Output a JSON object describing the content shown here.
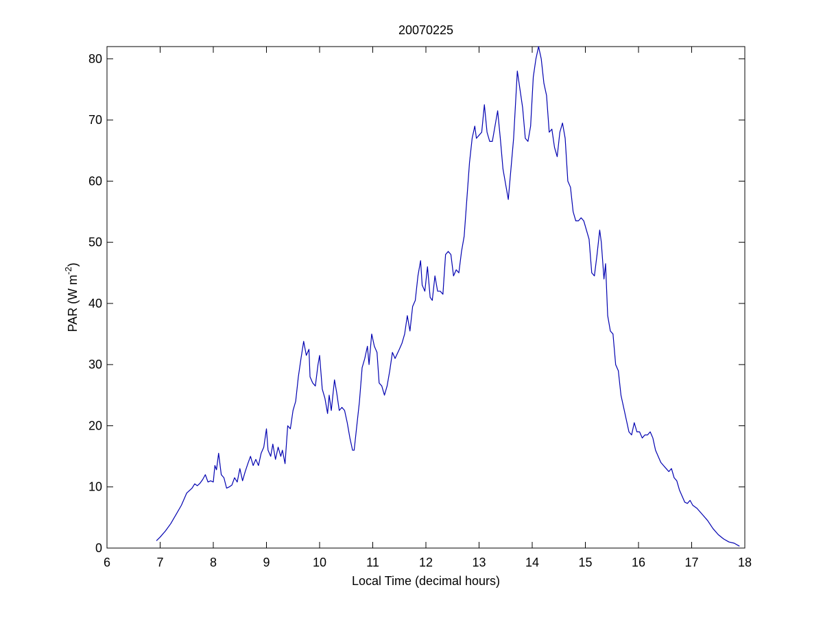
{
  "chart_data": {
    "type": "line",
    "title": "20070225",
    "xlabel": "Local Time (decimal hours)",
    "ylabel": {
      "text": "PAR (W m",
      "superscript": "-2",
      "suffix": ")"
    },
    "xlim": [
      6,
      18
    ],
    "ylim": [
      0,
      82
    ],
    "xticks": [
      6,
      7,
      8,
      9,
      10,
      11,
      12,
      13,
      14,
      15,
      16,
      17,
      18
    ],
    "yticks": [
      0,
      10,
      20,
      30,
      40,
      50,
      60,
      70,
      80
    ],
    "grid": false,
    "x": [
      6.93,
      7.0,
      7.1,
      7.2,
      7.3,
      7.4,
      7.5,
      7.6,
      7.65,
      7.7,
      7.75,
      7.8,
      7.85,
      7.9,
      7.95,
      8.0,
      8.03,
      8.06,
      8.1,
      8.15,
      8.2,
      8.25,
      8.3,
      8.35,
      8.4,
      8.45,
      8.5,
      8.55,
      8.6,
      8.65,
      8.7,
      8.75,
      8.8,
      8.85,
      8.9,
      8.95,
      9.0,
      9.03,
      9.08,
      9.12,
      9.17,
      9.22,
      9.27,
      9.3,
      9.35,
      9.4,
      9.45,
      9.5,
      9.55,
      9.6,
      9.65,
      9.7,
      9.75,
      9.8,
      9.82,
      9.87,
      9.92,
      9.97,
      10.0,
      10.05,
      10.1,
      10.15,
      10.18,
      10.22,
      10.28,
      10.32,
      10.37,
      10.42,
      10.47,
      10.52,
      10.57,
      10.62,
      10.65,
      10.7,
      10.75,
      10.8,
      10.85,
      10.9,
      10.93,
      10.98,
      11.03,
      11.08,
      11.12,
      11.17,
      11.22,
      11.27,
      11.32,
      11.37,
      11.42,
      11.5,
      11.55,
      11.6,
      11.65,
      11.7,
      11.75,
      11.8,
      11.85,
      11.9,
      11.93,
      11.98,
      12.03,
      12.08,
      12.12,
      12.17,
      12.22,
      12.27,
      12.32,
      12.37,
      12.42,
      12.47,
      12.52,
      12.57,
      12.62,
      12.67,
      12.72,
      12.77,
      12.82,
      12.87,
      12.92,
      12.95,
      13.0,
      13.05,
      13.1,
      13.15,
      13.2,
      13.25,
      13.3,
      13.35,
      13.4,
      13.45,
      13.5,
      13.55,
      13.6,
      13.65,
      13.72,
      13.77,
      13.82,
      13.87,
      13.92,
      13.97,
      14.02,
      14.07,
      14.12,
      14.17,
      14.22,
      14.27,
      14.32,
      14.37,
      14.42,
      14.47,
      14.52,
      14.57,
      14.62,
      14.67,
      14.72,
      14.77,
      14.82,
      14.87,
      14.92,
      14.97,
      15.02,
      15.07,
      15.12,
      15.17,
      15.22,
      15.27,
      15.3,
      15.35,
      15.38,
      15.42,
      15.47,
      15.52,
      15.57,
      15.62,
      15.67,
      15.72,
      15.77,
      15.82,
      15.87,
      15.92,
      15.97,
      16.02,
      16.07,
      16.12,
      16.17,
      16.22,
      16.27,
      16.32,
      16.37,
      16.42,
      16.47,
      16.52,
      16.57,
      16.62,
      16.67,
      16.72,
      16.77,
      16.82,
      16.87,
      16.92,
      16.97,
      17.02,
      17.1,
      17.2,
      17.3,
      17.4,
      17.5,
      17.6,
      17.7,
      17.8,
      17.9
    ],
    "series": [
      {
        "color": "#0000b0",
        "values": [
          1.2,
          1.8,
          2.8,
          4,
          5.5,
          7,
          9,
          9.8,
          10.5,
          10.2,
          10.6,
          11.2,
          12,
          10.8,
          11,
          10.8,
          13.5,
          12.8,
          15.5,
          12,
          11.5,
          9.8,
          10,
          10.3,
          11.5,
          10.8,
          13,
          11,
          12.5,
          13.8,
          15,
          13.5,
          14.5,
          13.5,
          15.5,
          16.5,
          19.5,
          16,
          15,
          17,
          14.5,
          16.5,
          15,
          16,
          13.8,
          20,
          19.5,
          22.5,
          24,
          28,
          31,
          33.8,
          31.5,
          32.5,
          28,
          27,
          26.5,
          30,
          31.5,
          26,
          24.5,
          22,
          25,
          22.5,
          27.5,
          25.5,
          22.5,
          23,
          22.5,
          20.5,
          18,
          16,
          16,
          20,
          24,
          29.5,
          31,
          33,
          30,
          35,
          33,
          32,
          27,
          26.5,
          25,
          26.5,
          29,
          32,
          31,
          32.5,
          33.5,
          35,
          38,
          35.5,
          39.5,
          40.5,
          44.5,
          47,
          43,
          42,
          46,
          41,
          40.5,
          44.5,
          42,
          42,
          41.5,
          48,
          48.5,
          48,
          44.5,
          45.5,
          45,
          48.5,
          51,
          57,
          63,
          67,
          69,
          67,
          67.5,
          68,
          72.5,
          68,
          66.5,
          66.5,
          69,
          71.5,
          67,
          62,
          59.5,
          57,
          62,
          67,
          78,
          75,
          72,
          67,
          66.5,
          69,
          77,
          80,
          82,
          80,
          76,
          74,
          68,
          68.5,
          65.5,
          64,
          68,
          69.5,
          67,
          60,
          59,
          55,
          53.5,
          53.5,
          54,
          53.5,
          52,
          50.5,
          45,
          44.5,
          48,
          52,
          50,
          44,
          46.5,
          38,
          35.5,
          35,
          30,
          29,
          25,
          23,
          21,
          19,
          18.5,
          20.5,
          19,
          19,
          18,
          18.5,
          18.5,
          19,
          18,
          16,
          15,
          14,
          13.5,
          13,
          12.5,
          13,
          11.5,
          11,
          9.5,
          8.5,
          7.5,
          7.3,
          7.8,
          7,
          6.5,
          5.5,
          4.5,
          3.2,
          2.2,
          1.5,
          1,
          0.8,
          0.3
        ]
      }
    ]
  }
}
